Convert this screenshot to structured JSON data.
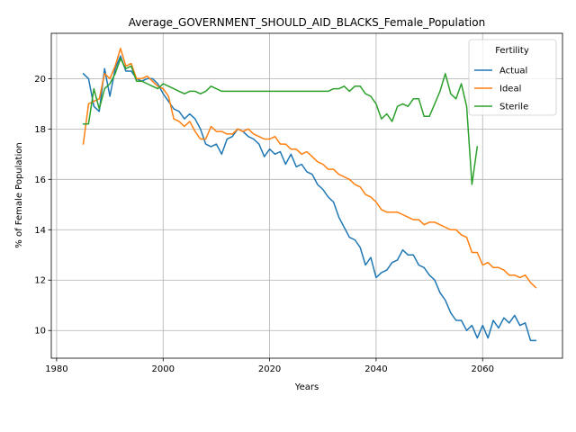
{
  "chart_data": {
    "type": "line",
    "title": "Average_GOVERNMENT_SHOULD_AID_BLACKS_Female_Population",
    "xlabel": "Years",
    "ylabel": "% of Female Population",
    "xlim": [
      1979,
      2075
    ],
    "ylim": [
      8.9,
      21.8
    ],
    "xticks": [
      1980,
      2000,
      2020,
      2040,
      2060
    ],
    "yticks": [
      10,
      12,
      14,
      16,
      18,
      20
    ],
    "grid": true,
    "legend": {
      "title": "Fertility",
      "placement": "top-right"
    },
    "series": [
      {
        "name": "Actual",
        "color": "#1f77b4",
        "x": [
          1985,
          1986,
          1987,
          1988,
          1989,
          1990,
          1991,
          1992,
          1993,
          1994,
          1995,
          1996,
          1997,
          1998,
          1999,
          2000,
          2001,
          2002,
          2003,
          2004,
          2005,
          2006,
          2007,
          2008,
          2009,
          2010,
          2011,
          2012,
          2013,
          2014,
          2015,
          2016,
          2017,
          2018,
          2019,
          2020,
          2021,
          2022,
          2023,
          2024,
          2025,
          2026,
          2027,
          2028,
          2029,
          2030,
          2031,
          2032,
          2033,
          2034,
          2035,
          2036,
          2037,
          2038,
          2039,
          2040,
          2041,
          2042,
          2043,
          2044,
          2045,
          2046,
          2047,
          2048,
          2049,
          2050,
          2051,
          2052,
          2053,
          2054,
          2055,
          2056,
          2057,
          2058,
          2059,
          2060,
          2061,
          2062,
          2063,
          2064,
          2065,
          2066,
          2067,
          2068,
          2069,
          2070
        ],
        "values": [
          20.2,
          20.0,
          18.9,
          18.7,
          20.4,
          19.3,
          20.4,
          20.9,
          20.3,
          20.3,
          20.0,
          19.9,
          20.0,
          20.0,
          19.8,
          19.4,
          19.1,
          18.8,
          18.7,
          18.4,
          18.6,
          18.4,
          18.0,
          17.4,
          17.3,
          17.4,
          17.0,
          17.6,
          17.7,
          18.0,
          17.9,
          17.7,
          17.6,
          17.4,
          16.9,
          17.2,
          17.0,
          17.1,
          16.6,
          17.0,
          16.5,
          16.6,
          16.3,
          16.2,
          15.8,
          15.6,
          15.3,
          15.1,
          14.5,
          14.1,
          13.7,
          13.6,
          13.3,
          12.6,
          12.9,
          12.1,
          12.3,
          12.4,
          12.7,
          12.8,
          13.2,
          13.0,
          13.0,
          12.6,
          12.5,
          12.2,
          12.0,
          11.5,
          11.2,
          10.7,
          10.4,
          10.4,
          10.0,
          10.2,
          9.7,
          10.2,
          9.7,
          10.4,
          10.1,
          10.5,
          10.3,
          10.6,
          10.2,
          10.3,
          9.6,
          9.6
        ]
      },
      {
        "name": "Ideal",
        "color": "#ff7f0e",
        "x": [
          1985,
          1986,
          1987,
          1988,
          1989,
          1990,
          1991,
          1992,
          1993,
          1994,
          1995,
          1996,
          1997,
          1998,
          1999,
          2000,
          2001,
          2002,
          2003,
          2004,
          2005,
          2006,
          2007,
          2008,
          2009,
          2010,
          2011,
          2012,
          2013,
          2014,
          2015,
          2016,
          2017,
          2018,
          2019,
          2020,
          2021,
          2022,
          2023,
          2024,
          2025,
          2026,
          2027,
          2028,
          2029,
          2030,
          2031,
          2032,
          2033,
          2034,
          2035,
          2036,
          2037,
          2038,
          2039,
          2040,
          2041,
          2042,
          2043,
          2044,
          2045,
          2046,
          2047,
          2048,
          2049,
          2050,
          2051,
          2052,
          2053,
          2054,
          2055,
          2056,
          2057,
          2058,
          2059,
          2060,
          2061,
          2062,
          2063,
          2064,
          2065,
          2066,
          2067,
          2068,
          2069,
          2070
        ],
        "values": [
          17.4,
          19.0,
          19.1,
          19.2,
          20.2,
          20.0,
          20.5,
          21.2,
          20.5,
          20.6,
          20.0,
          20.0,
          20.1,
          19.9,
          19.7,
          19.6,
          19.3,
          18.4,
          18.3,
          18.1,
          18.3,
          17.9,
          17.6,
          17.6,
          18.1,
          17.9,
          17.9,
          17.8,
          17.8,
          18.0,
          17.9,
          18.0,
          17.8,
          17.7,
          17.6,
          17.6,
          17.7,
          17.4,
          17.4,
          17.2,
          17.2,
          17.0,
          17.1,
          16.9,
          16.7,
          16.6,
          16.4,
          16.4,
          16.2,
          16.1,
          16.0,
          15.8,
          15.7,
          15.4,
          15.3,
          15.1,
          14.8,
          14.7,
          14.7,
          14.7,
          14.6,
          14.5,
          14.4,
          14.4,
          14.2,
          14.3,
          14.3,
          14.2,
          14.1,
          14.0,
          14.0,
          13.8,
          13.7,
          13.1,
          13.1,
          12.6,
          12.7,
          12.5,
          12.5,
          12.4,
          12.2,
          12.2,
          12.1,
          12.2,
          11.9,
          11.7
        ]
      },
      {
        "name": "Sterile",
        "color": "#2ca02c",
        "x": [
          1985,
          1986,
          1987,
          1988,
          1989,
          1990,
          1991,
          1992,
          1993,
          1994,
          1995,
          1996,
          1997,
          1998,
          1999,
          2000,
          2001,
          2002,
          2003,
          2004,
          2005,
          2006,
          2007,
          2008,
          2009,
          2010,
          2011,
          2012,
          2013,
          2014,
          2015,
          2016,
          2017,
          2018,
          2019,
          2020,
          2021,
          2022,
          2023,
          2024,
          2025,
          2026,
          2027,
          2028,
          2029,
          2030,
          2031,
          2032,
          2033,
          2034,
          2035,
          2036,
          2037,
          2038,
          2039,
          2040,
          2041,
          2042,
          2043,
          2044,
          2045,
          2046,
          2047,
          2048,
          2049,
          2050,
          2051,
          2052,
          2053,
          2054,
          2055,
          2056,
          2057,
          2058,
          2059
        ],
        "values": [
          18.2,
          18.2,
          19.6,
          18.8,
          19.6,
          19.8,
          20.2,
          20.8,
          20.4,
          20.5,
          19.9,
          19.9,
          19.8,
          19.7,
          19.6,
          19.8,
          19.7,
          19.6,
          19.5,
          19.4,
          19.5,
          19.5,
          19.4,
          19.5,
          19.7,
          19.6,
          19.5,
          19.5,
          19.5,
          19.5,
          19.5,
          19.5,
          19.5,
          19.5,
          19.5,
          19.5,
          19.5,
          19.5,
          19.5,
          19.5,
          19.5,
          19.5,
          19.5,
          19.5,
          19.5,
          19.5,
          19.5,
          19.6,
          19.6,
          19.7,
          19.5,
          19.7,
          19.7,
          19.4,
          19.3,
          19.0,
          18.4,
          18.6,
          18.3,
          18.9,
          19.0,
          18.9,
          19.2,
          19.2,
          18.5,
          18.5,
          19.0,
          19.5,
          20.2,
          19.4,
          19.2,
          19.8,
          18.9,
          15.8,
          17.3
        ]
      }
    ]
  }
}
